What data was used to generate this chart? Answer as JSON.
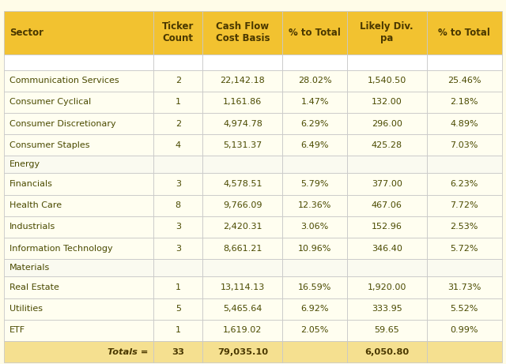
{
  "header": [
    "Sector",
    "Ticker\nCount",
    "Cash Flow\nCost Basis",
    "% to Total",
    "Likely Div.\npa",
    "% to Total"
  ],
  "rows": [
    [
      "Communication Services",
      "2",
      "22,142.18",
      "28.02%",
      "1,540.50",
      "25.46%"
    ],
    [
      "Consumer Cyclical",
      "1",
      "1,161.86",
      "1.47%",
      "132.00",
      "2.18%"
    ],
    [
      "Consumer Discretionary",
      "2",
      "4,974.78",
      "6.29%",
      "296.00",
      "4.89%"
    ],
    [
      "Consumer Staples",
      "4",
      "5,131.37",
      "6.49%",
      "425.28",
      "7.03%"
    ],
    [
      "Energy",
      "",
      "",
      "",
      "",
      ""
    ],
    [
      "Financials",
      "3",
      "4,578.51",
      "5.79%",
      "377.00",
      "6.23%"
    ],
    [
      "Health Care",
      "8",
      "9,766.09",
      "12.36%",
      "467.06",
      "7.72%"
    ],
    [
      "Industrials",
      "3",
      "2,420.31",
      "3.06%",
      "152.96",
      "2.53%"
    ],
    [
      "Information Technology",
      "3",
      "8,661.21",
      "10.96%",
      "346.40",
      "5.72%"
    ],
    [
      "Materials",
      "",
      "",
      "",
      "",
      ""
    ],
    [
      "Real Estate",
      "1",
      "13,114.13",
      "16.59%",
      "1,920.00",
      "31.73%"
    ],
    [
      "Utilities",
      "5",
      "5,465.64",
      "6.92%",
      "333.95",
      "5.52%"
    ],
    [
      "ETF",
      "1",
      "1,619.02",
      "2.05%",
      "59.65",
      "0.99%"
    ]
  ],
  "totals_row": [
    "Totals =",
    "33",
    "79,035.10",
    "",
    "6,050.80",
    ""
  ],
  "header_bg": "#F2C230",
  "header_text": "#4A3800",
  "empty_row_bg": "#FFFFFF",
  "data_row_bg": "#FFFEF0",
  "totals_bg": "#F5E090",
  "totals_text": "#4A3800",
  "grid_color": "#C8C8C8",
  "text_color": "#4A4A00",
  "figsize": [
    6.4,
    4.61
  ],
  "dpi": 100,
  "top_margin_bg": "#FFFCE8",
  "col_rights": [
    0,
    1,
    2,
    3,
    4,
    5
  ]
}
